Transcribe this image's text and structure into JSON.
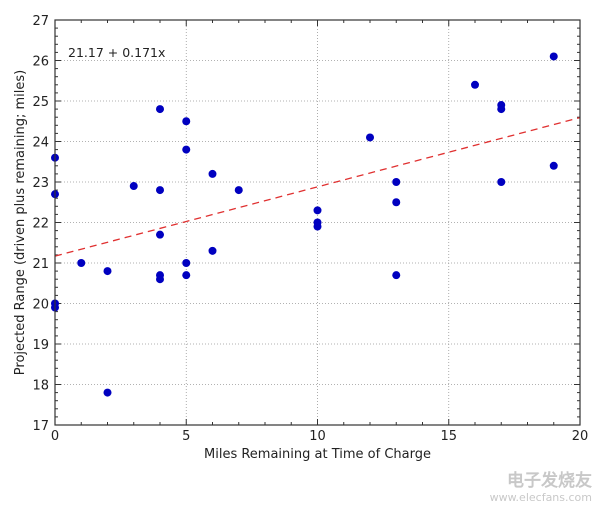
{
  "chart_data": {
    "type": "scatter",
    "title": "",
    "xlabel": "Miles Remaining at Time of Charge",
    "ylabel": "Projected Range (driven plus remaining; miles)",
    "xlim": [
      0,
      20
    ],
    "ylim": [
      17,
      27
    ],
    "xticks": [
      "0",
      "5",
      "10",
      "15",
      "20"
    ],
    "yticks": [
      "17",
      "18",
      "19",
      "20",
      "21",
      "22",
      "23",
      "24",
      "25",
      "26",
      "27"
    ],
    "grid": true,
    "annotation": "21.17 + 0.171x",
    "fit": {
      "intercept": 21.17,
      "slope": 0.171,
      "color": "#e03030",
      "style": "dashed"
    },
    "point_color": "#0000c0",
    "points": [
      [
        0,
        23.6
      ],
      [
        0,
        22.7
      ],
      [
        0,
        20.0
      ],
      [
        0,
        19.9
      ],
      [
        1,
        21.0
      ],
      [
        2,
        20.8
      ],
      [
        2,
        17.8
      ],
      [
        3,
        22.9
      ],
      [
        4,
        24.8
      ],
      [
        4,
        22.8
      ],
      [
        4,
        21.7
      ],
      [
        4,
        20.7
      ],
      [
        4,
        20.6
      ],
      [
        5,
        24.5
      ],
      [
        5,
        23.8
      ],
      [
        5,
        21.0
      ],
      [
        5,
        20.7
      ],
      [
        6,
        23.2
      ],
      [
        6,
        21.3
      ],
      [
        7,
        22.8
      ],
      [
        10,
        22.3
      ],
      [
        10,
        22.0
      ],
      [
        10,
        21.9
      ],
      [
        12,
        24.1
      ],
      [
        13,
        23.0
      ],
      [
        13,
        22.5
      ],
      [
        13,
        20.7
      ],
      [
        16,
        25.4
      ],
      [
        17,
        24.9
      ],
      [
        17,
        24.8
      ],
      [
        17,
        23.0
      ],
      [
        19,
        26.1
      ],
      [
        19,
        23.4
      ]
    ]
  },
  "watermark": {
    "name": "电子发烧友",
    "url": "www.elecfans.com"
  }
}
